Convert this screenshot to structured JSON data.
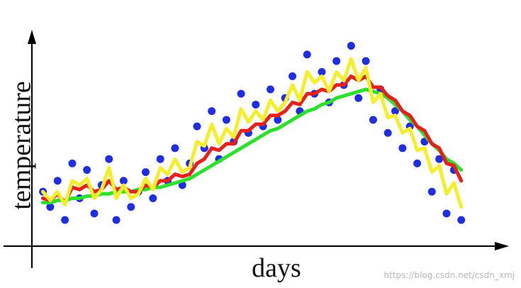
{
  "chart_data": {
    "type": "scatter",
    "x_label": "days",
    "y_label": "temperature",
    "watermark": "https://blog.csdn.net/csdn_xmj",
    "xlim": [
      0,
      130
    ],
    "ylim": [
      0,
      100
    ],
    "x": [
      3,
      5,
      7,
      9,
      11,
      13,
      15,
      17,
      19,
      21,
      23,
      25,
      27,
      29,
      31,
      33,
      35,
      37,
      39,
      41,
      43,
      45,
      47,
      49,
      51,
      53,
      55,
      57,
      59,
      61,
      63,
      65,
      67,
      69,
      71,
      73,
      75,
      77,
      79,
      81,
      83,
      85,
      87,
      89,
      91,
      93,
      95,
      97,
      99,
      101,
      103,
      105,
      107,
      109,
      111,
      113,
      115,
      117
    ],
    "series": [
      {
        "kind": "points",
        "color": "#1f2ee0",
        "values": [
          25,
          18,
          30,
          12,
          38,
          22,
          35,
          15,
          28,
          40,
          12,
          30,
          18,
          25,
          34,
          22,
          40,
          30,
          45,
          28,
          38,
          55,
          45,
          62,
          40,
          58,
          48,
          70,
          52,
          65,
          55,
          72,
          58,
          68,
          78,
          62,
          88,
          70,
          80,
          66,
          85,
          74,
          92,
          68,
          85,
          58,
          72,
          52,
          62,
          45,
          55,
          38,
          48,
          25,
          40,
          15,
          35,
          12
        ]
      },
      {
        "kind": "line",
        "color": "#2ee02e",
        "values": [
          20,
          20,
          21,
          21,
          22,
          22,
          23,
          23,
          24,
          24,
          25,
          25,
          25,
          26,
          26,
          27,
          27,
          28,
          29,
          30,
          31,
          33,
          35,
          37,
          39,
          41,
          43,
          45,
          47,
          49,
          51,
          53,
          54,
          56,
          58,
          60,
          62,
          63,
          65,
          66,
          68,
          69,
          70,
          71,
          72,
          71,
          70,
          68,
          65,
          62,
          58,
          55,
          51,
          47,
          44,
          40,
          38,
          35
        ]
      },
      {
        "kind": "line",
        "color": "#e8201a",
        "values": [
          22,
          21,
          24,
          20,
          27,
          26,
          28,
          25,
          26,
          30,
          26,
          27,
          25,
          25,
          28,
          27,
          30,
          30,
          33,
          32,
          33,
          38,
          40,
          45,
          44,
          47,
          47,
          53,
          53,
          56,
          56,
          60,
          60,
          62,
          66,
          65,
          70,
          70,
          72,
          71,
          74,
          74,
          78,
          76,
          78,
          73,
          73,
          69,
          67,
          62,
          60,
          55,
          53,
          47,
          45,
          38,
          37,
          30
        ]
      },
      {
        "kind": "line",
        "color": "#f5ee2a",
        "values": [
          25,
          21,
          25,
          19,
          30,
          28,
          31,
          22,
          26,
          36,
          22,
          28,
          22,
          24,
          31,
          26,
          36,
          33,
          40,
          34,
          36,
          48,
          46,
          56,
          47,
          54,
          50,
          63,
          57,
          62,
          58,
          67,
          62,
          66,
          74,
          67,
          80,
          75,
          78,
          71,
          80,
          76,
          86,
          76,
          82,
          66,
          70,
          59,
          60,
          52,
          54,
          44,
          45,
          34,
          37,
          24,
          29,
          18
        ]
      }
    ]
  }
}
